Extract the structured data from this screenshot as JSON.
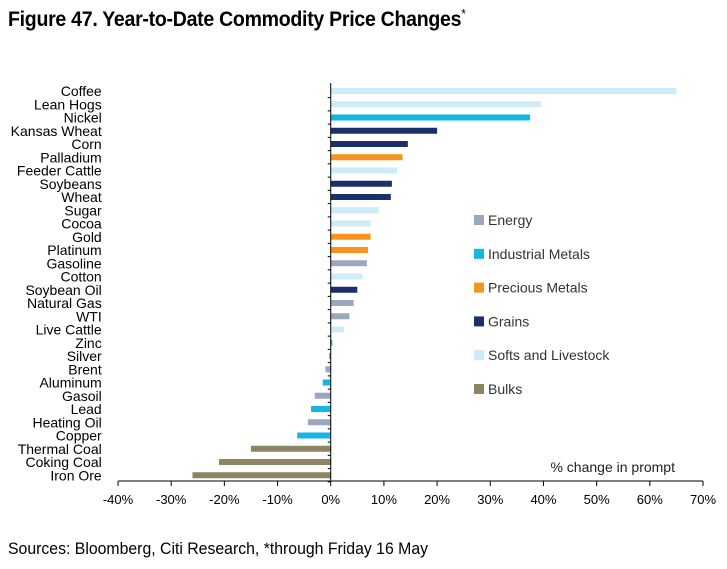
{
  "title": "Figure 47. Year-to-Date Commodity Price Changes",
  "title_mark": "*",
  "source": "Sources: Bloomberg, Citi Research, *through Friday 16 May",
  "colors": {
    "Energy": "#9ba6bf",
    "Industrial Metals": "#14b6e6",
    "Precious Metals": "#f7941d",
    "Grains": "#1b2f6b",
    "Softs and Livestock": "#ccecf8",
    "Bulks": "#8c8462"
  },
  "chart_data": {
    "type": "bar",
    "orientation": "horizontal",
    "title": "Figure 47. Year-to-Date Commodity Price Changes*",
    "xlabel": "",
    "ylabel": "",
    "annotation": "% change in prompt",
    "xlim": [
      -40,
      70
    ],
    "xticks": [
      -40,
      -30,
      -20,
      -10,
      0,
      10,
      20,
      30,
      40,
      50,
      60,
      70
    ],
    "tick_suffix": "%",
    "grid": false,
    "legend_position": "right",
    "legend": [
      "Energy",
      "Industrial Metals",
      "Precious Metals",
      "Grains",
      "Softs and Livestock",
      "Bulks"
    ],
    "bars": [
      {
        "label": "Coffee",
        "value": 65,
        "group": "Softs and Livestock"
      },
      {
        "label": "Lean Hogs",
        "value": 39.5,
        "group": "Softs and Livestock"
      },
      {
        "label": "Nickel",
        "value": 37.5,
        "group": "Industrial Metals"
      },
      {
        "label": "Kansas Wheat",
        "value": 20,
        "group": "Grains"
      },
      {
        "label": "Corn",
        "value": 14.5,
        "group": "Grains"
      },
      {
        "label": "Palladium",
        "value": 13.5,
        "group": "Precious Metals"
      },
      {
        "label": "Feeder Cattle",
        "value": 12.5,
        "group": "Softs and Livestock"
      },
      {
        "label": "Soybeans",
        "value": 11.5,
        "group": "Grains"
      },
      {
        "label": "Wheat",
        "value": 11.3,
        "group": "Grains"
      },
      {
        "label": "Sugar",
        "value": 9,
        "group": "Softs and Livestock"
      },
      {
        "label": "Cocoa",
        "value": 7.5,
        "group": "Softs and Livestock"
      },
      {
        "label": "Gold",
        "value": 7.5,
        "group": "Precious Metals"
      },
      {
        "label": "Platinum",
        "value": 7,
        "group": "Precious Metals"
      },
      {
        "label": "Gasoline",
        "value": 6.8,
        "group": "Energy"
      },
      {
        "label": "Cotton",
        "value": 6,
        "group": "Softs and Livestock"
      },
      {
        "label": "Soybean Oil",
        "value": 5,
        "group": "Grains"
      },
      {
        "label": "Natural Gas",
        "value": 4.3,
        "group": "Energy"
      },
      {
        "label": "WTI",
        "value": 3.5,
        "group": "Energy"
      },
      {
        "label": "Live Cattle",
        "value": 2.5,
        "group": "Softs and Livestock"
      },
      {
        "label": "Zinc",
        "value": 0.3,
        "group": "Industrial Metals"
      },
      {
        "label": "Silver",
        "value": -0.3,
        "group": "Precious Metals"
      },
      {
        "label": "Brent",
        "value": -1,
        "group": "Energy"
      },
      {
        "label": "Aluminum",
        "value": -1.5,
        "group": "Industrial Metals"
      },
      {
        "label": "Gasoil",
        "value": -3,
        "group": "Energy"
      },
      {
        "label": "Lead",
        "value": -3.7,
        "group": "Industrial Metals"
      },
      {
        "label": "Heating Oil",
        "value": -4.3,
        "group": "Energy"
      },
      {
        "label": "Copper",
        "value": -6.3,
        "group": "Industrial Metals"
      },
      {
        "label": "Thermal Coal",
        "value": -15,
        "group": "Bulks"
      },
      {
        "label": "Coking Coal",
        "value": -21,
        "group": "Bulks"
      },
      {
        "label": "Iron Ore",
        "value": -26,
        "group": "Bulks"
      }
    ]
  }
}
